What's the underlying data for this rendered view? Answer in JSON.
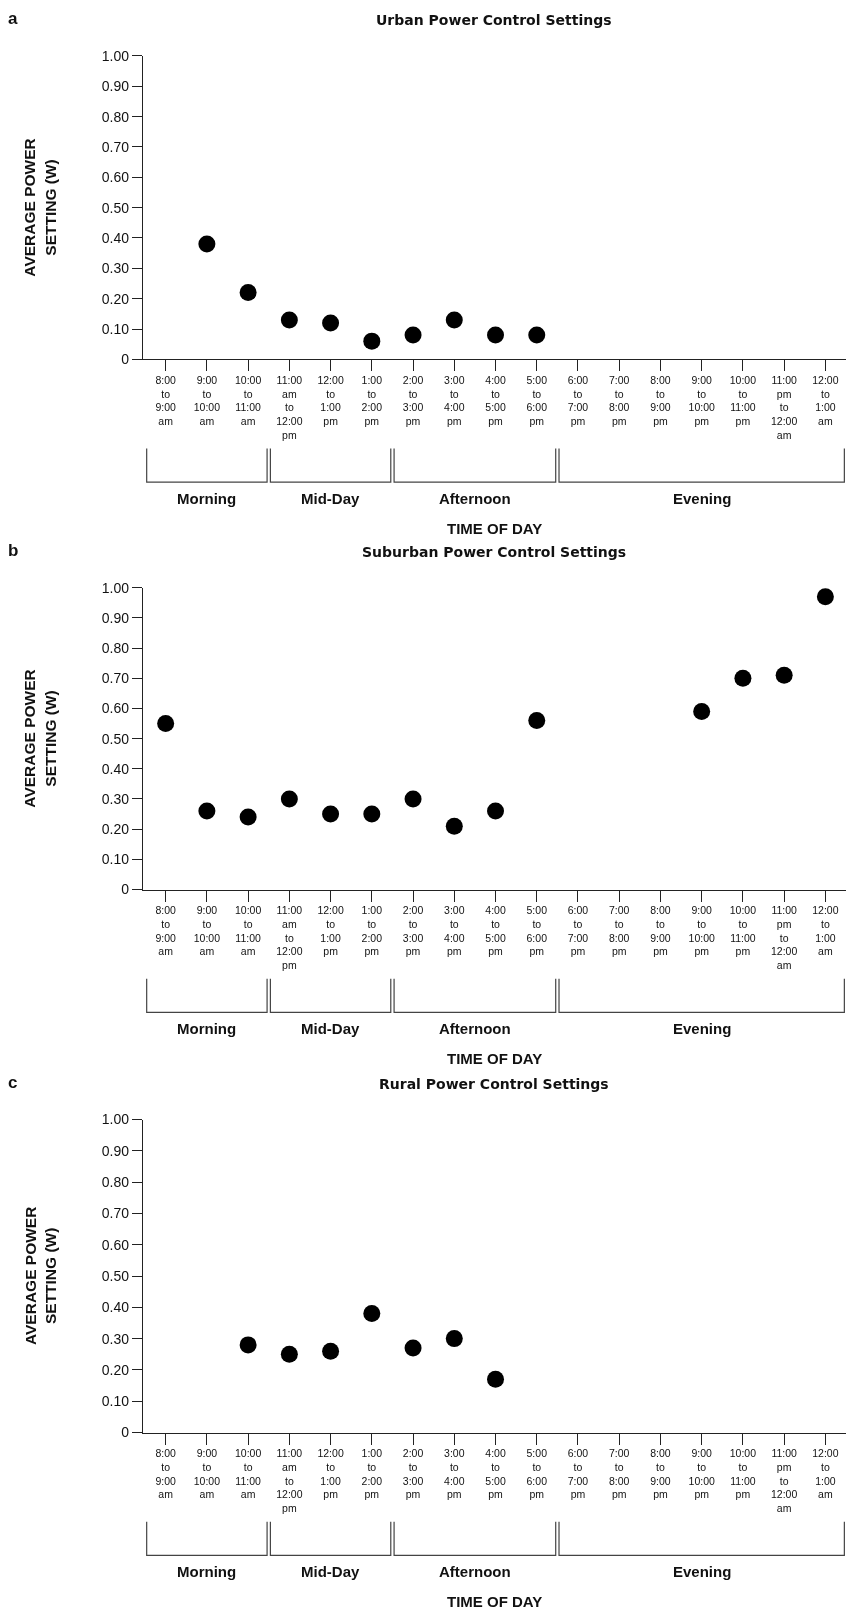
{
  "chart_data": [
    {
      "type": "scatter",
      "title": "Urban Power Control Settings",
      "xlabel": "TIME OF DAY",
      "ylabel": "AVERAGE POWER SETTING (W)",
      "annotations": [
        "a",
        "Morning",
        "Mid-Day",
        "Afternoon",
        "Evening"
      ],
      "categories": [
        "8:00 to 9:00 am",
        "9:00 to 10:00 am",
        "10:00 to 11:00 am",
        "11:00 am to 12:00 pm",
        "12:00 to 1:00 pm",
        "1:00 to 2:00 pm",
        "2:00 to 3:00 pm",
        "3:00 to 4:00 pm",
        "4:00 to 5:00 pm",
        "5:00 to 6:00 pm",
        "6:00 to 7:00 pm",
        "7:00 to 8:00 pm",
        "8:00 to 9:00 pm",
        "9:00 to 10:00 pm",
        "10:00 to 11:00 pm",
        "11:00 pm to 12:00 am",
        "12:00 to 1:00 am"
      ],
      "values": [
        null,
        0.38,
        0.22,
        0.13,
        0.12,
        0.06,
        0.08,
        0.13,
        0.08,
        0.08,
        null,
        null,
        null,
        null,
        null,
        null,
        null
      ],
      "color": "#000000",
      "marker": "circle",
      "ylim": [
        0,
        1
      ],
      "yticks": [
        0,
        {
          "value": 0.1,
          "label": "0.10"
        },
        {
          "value": 0.2,
          "label": "0.20"
        },
        {
          "value": 0.3,
          "label": "0.30"
        },
        {
          "value": 0.4,
          "label": "0.40"
        },
        {
          "value": 0.5,
          "label": "0.50"
        },
        {
          "value": 0.6,
          "label": "0.60"
        },
        {
          "value": 0.7,
          "label": "0.70"
        },
        {
          "value": 0.8,
          "label": "0.80"
        },
        {
          "value": 0.9,
          "label": "0.90"
        },
        {
          "value": 1,
          "label": "1.00"
        }
      ]
    },
    {
      "type": "scatter",
      "title": "Suburban Power Control Settings",
      "xlabel": "TIME OF DAY",
      "ylabel": "AVERAGE POWER SETTING (W)",
      "annotations": [
        "b",
        "Morning",
        "Mid-Day",
        "Afternoon",
        "Evening"
      ],
      "categories": [
        "8:00 to 9:00 am",
        "9:00 to 10:00 am",
        "10:00 to 11:00 am",
        "11:00 am to 12:00 pm",
        "12:00 to 1:00 pm",
        "1:00 to 2:00 pm",
        "2:00 to 3:00 pm",
        "3:00 to 4:00 pm",
        "4:00 to 5:00 pm",
        "5:00 to 6:00 pm",
        "6:00 to 7:00 pm",
        "7:00 to 8:00 pm",
        "8:00 to 9:00 pm",
        "9:00 to 10:00 pm",
        "10:00 to 11:00 pm",
        "11:00 pm to 12:00 am",
        "12:00 to 1:00 am"
      ],
      "values": [
        0.55,
        0.26,
        0.24,
        0.3,
        0.25,
        0.25,
        0.3,
        0.21,
        0.26,
        0.56,
        null,
        null,
        null,
        0.59,
        0.7,
        0.71,
        0.97
      ],
      "color": "#000000",
      "marker": "circle",
      "ylim": [
        0,
        1
      ],
      "yticks": [
        0,
        {
          "value": 0.1,
          "label": "0.10"
        },
        {
          "value": 0.2,
          "label": "0.20"
        },
        {
          "value": 0.3,
          "label": "0.30"
        },
        {
          "value": 0.4,
          "label": "0.40"
        },
        {
          "value": 0.5,
          "label": "0.50"
        },
        {
          "value": 0.6,
          "label": "0.60"
        },
        {
          "value": 0.7,
          "label": "0.70"
        },
        {
          "value": 0.8,
          "label": "0.80"
        },
        {
          "value": 0.9,
          "label": "0.90"
        },
        {
          "value": 1,
          "label": "1.00"
        }
      ]
    },
    {
      "type": "scatter",
      "title": "Rural Power Control Settings",
      "xlabel": "TIME OF DAY",
      "ylabel": "AVERAGE POWER SETTING (W)",
      "annotations": [
        "c",
        "Morning",
        "Mid-Day",
        "Afternoon",
        "Evening"
      ],
      "categories": [
        "8:00 to 9:00 am",
        "9:00 to 10:00 am",
        "10:00 to 11:00 am",
        "11:00 am to 12:00 pm",
        "12:00 to 1:00 pm",
        "1:00 to 2:00 pm",
        "2:00 to 3:00 pm",
        "3:00 to 4:00 pm",
        "4:00 to 5:00 pm",
        "5:00 to 6:00 pm",
        "6:00 to 7:00 pm",
        "7:00 to 8:00 pm",
        "8:00 to 9:00 pm",
        "9:00 to 10:00 pm",
        "10:00 to 11:00 pm",
        "11:00 pm to 12:00 am",
        "12:00 to 1:00 am"
      ],
      "values": [
        null,
        null,
        0.28,
        0.25,
        0.26,
        0.38,
        0.27,
        0.3,
        0.17,
        null,
        null,
        null,
        null,
        null,
        null,
        null,
        null
      ],
      "color": "#000000",
      "marker": "circle",
      "ylim": [
        0,
        1
      ],
      "yticks": [
        0,
        {
          "value": 0.1,
          "label": "0.10"
        },
        {
          "value": 0.2,
          "label": "0.20"
        },
        {
          "value": 0.3,
          "label": "0.30"
        },
        {
          "value": 0.4,
          "label": "0.40"
        },
        {
          "value": 0.5,
          "label": "0.50"
        },
        {
          "value": 0.6,
          "label": "0.60"
        },
        {
          "value": 0.7,
          "label": "0.70"
        },
        {
          "value": 0.8,
          "label": "0.80"
        },
        {
          "value": 0.9,
          "label": "0.90"
        },
        {
          "value": 1,
          "label": "1.00"
        }
      ]
    }
  ]
}
